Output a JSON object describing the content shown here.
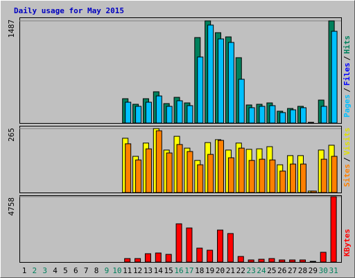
{
  "chart_data": {
    "type": "bar",
    "title": "Daily usage for May 2015",
    "categories": [
      "1",
      "2",
      "3",
      "4",
      "5",
      "6",
      "7",
      "8",
      "9",
      "10",
      "11",
      "12",
      "13",
      "14",
      "15",
      "16",
      "17",
      "18",
      "19",
      "20",
      "21",
      "22",
      "23",
      "24",
      "25",
      "26",
      "27",
      "28",
      "29",
      "30",
      "31"
    ],
    "weekend": [
      false,
      true,
      true,
      false,
      false,
      false,
      false,
      false,
      true,
      true,
      false,
      false,
      false,
      false,
      false,
      true,
      true,
      false,
      false,
      false,
      false,
      false,
      true,
      true,
      false,
      false,
      false,
      false,
      false,
      true,
      true
    ],
    "label_color": "#000000",
    "weekend_color": "#00805c",
    "separator": "/",
    "panels": [
      {
        "ylim": [
          0,
          1487
        ],
        "yticks": [
          1487
        ],
        "legend": [
          {
            "label": "Pages",
            "color": "#00c0ff"
          },
          {
            "label": "Files",
            "color": "#0000ff"
          },
          {
            "label": "Hits",
            "color": "#00805c"
          }
        ],
        "series": [
          {
            "color": "#00805c",
            "values": [
              0,
              0,
              0,
              0,
              0,
              0,
              0,
              0,
              0,
              0,
              354,
              273,
              354,
              455,
              283,
              374,
              293,
              1244,
              1487,
              1315,
              1254,
              951,
              263,
              273,
              293,
              172,
              212,
              243,
              10,
              334,
              1487
            ]
          },
          {
            "color": "#00c0ff",
            "values": [
              0,
              0,
              0,
              0,
              0,
              0,
              0,
              0,
              0,
              0,
              303,
              243,
              303,
              394,
              243,
              324,
              253,
              961,
              1426,
              1224,
              1173,
              637,
              223,
              243,
              253,
              152,
              192,
              223,
              0,
              243,
              1335
            ]
          }
        ]
      },
      {
        "ylim": [
          0,
          265
        ],
        "yticks": [
          265
        ],
        "legend": [
          {
            "label": "Sites",
            "color": "#ff8000"
          },
          {
            "label": "Visits",
            "color": "#e0e000"
          }
        ],
        "series": [
          {
            "color": "#ffff00",
            "values": [
              0,
              0,
              0,
              0,
              0,
              0,
              0,
              0,
              0,
              0,
              225,
              150,
              205,
              265,
              176,
              233,
              184,
              133,
              207,
              219,
              176,
              205,
              179,
              181,
              190,
              115,
              153,
              153,
              6,
              176,
              196
            ]
          },
          {
            "color": "#ff8000",
            "values": [
              0,
              0,
              0,
              0,
              0,
              0,
              0,
              0,
              0,
              0,
              202,
              135,
              181,
              256,
              164,
              199,
              170,
              115,
              158,
              216,
              144,
              184,
              133,
              138,
              135,
              89,
              118,
              118,
              6,
              138,
              150
            ]
          }
        ]
      },
      {
        "ylim": [
          0,
          4758
        ],
        "yticks": [
          4758
        ],
        "legend": [
          {
            "label": "KBytes",
            "color": "#ff0000"
          }
        ],
        "series": [
          {
            "color": "#ff0000",
            "values": [
              0,
              0,
              0,
              0,
              0,
              0,
              0,
              0,
              0,
              0,
              253,
              253,
              607,
              658,
              557,
              2784,
              2480,
              1012,
              860,
              2328,
              2075,
              405,
              152,
              202,
              253,
              152,
              152,
              152,
              51,
              709,
              4758
            ]
          }
        ]
      }
    ]
  }
}
